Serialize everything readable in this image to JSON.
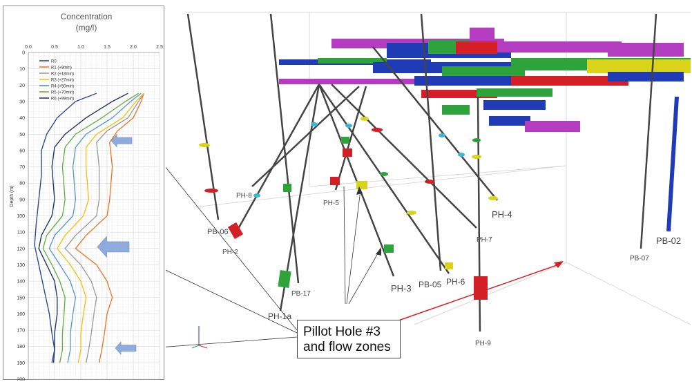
{
  "chart_data": {
    "type": "line",
    "title": "Concentration",
    "subtitle": "(mg/l)",
    "ylabel": "Depth (m)",
    "xlabel": "",
    "xlim": [
      0,
      2.5
    ],
    "ylim": [
      0,
      200
    ],
    "y_inverted": true,
    "x_axis_position": "top",
    "x_ticks": [
      "0.0",
      "0.5",
      "1.0",
      "1.5",
      "2.0",
      "2.5"
    ],
    "y_ticks": [
      "0",
      "10",
      "20",
      "30",
      "40",
      "50",
      "60",
      "70",
      "80",
      "90",
      "100",
      "110",
      "120",
      "130",
      "140",
      "150",
      "160",
      "170",
      "180",
      "190",
      "200"
    ],
    "grid": true,
    "legend_position": "top-left",
    "series": [
      {
        "name": "R0",
        "color": "#2a4a8a",
        "points": [
          [
            1.3,
            25
          ],
          [
            0.9,
            30
          ],
          [
            0.55,
            40
          ],
          [
            0.35,
            50
          ],
          [
            0.25,
            60
          ],
          [
            0.25,
            75
          ],
          [
            0.2,
            90
          ],
          [
            0.15,
            105
          ],
          [
            0.12,
            118
          ],
          [
            0.2,
            130
          ],
          [
            0.3,
            145
          ],
          [
            0.4,
            160
          ],
          [
            0.45,
            172
          ],
          [
            0.5,
            182
          ],
          [
            0.45,
            190
          ]
        ]
      },
      {
        "name": "R1 (+9min)",
        "color": "#e87b2c",
        "points": [
          [
            2.2,
            25
          ],
          [
            2.15,
            30
          ],
          [
            2.0,
            40
          ],
          [
            1.7,
            48
          ],
          [
            1.55,
            55
          ],
          [
            1.6,
            70
          ],
          [
            1.55,
            90
          ],
          [
            1.5,
            100
          ],
          [
            1.1,
            112
          ],
          [
            0.9,
            120
          ],
          [
            1.3,
            130
          ],
          [
            1.5,
            140
          ],
          [
            1.6,
            150
          ],
          [
            1.5,
            160
          ],
          [
            1.45,
            172
          ],
          [
            1.4,
            182
          ],
          [
            1.35,
            190
          ]
        ]
      },
      {
        "name": "R2 (+18min)",
        "color": "#9e9e9e",
        "points": [
          [
            2.2,
            25
          ],
          [
            2.1,
            30
          ],
          [
            1.9,
            40
          ],
          [
            1.5,
            48
          ],
          [
            1.3,
            55
          ],
          [
            1.35,
            70
          ],
          [
            1.35,
            90
          ],
          [
            1.3,
            100
          ],
          [
            0.9,
            112
          ],
          [
            0.7,
            120
          ],
          [
            1.0,
            130
          ],
          [
            1.2,
            140
          ],
          [
            1.3,
            150
          ],
          [
            1.25,
            160
          ],
          [
            1.2,
            172
          ],
          [
            1.15,
            182
          ],
          [
            1.1,
            190
          ]
        ]
      },
      {
        "name": "R3 (+27min)",
        "color": "#f2c21a",
        "points": [
          [
            2.2,
            25
          ],
          [
            2.05,
            30
          ],
          [
            1.8,
            40
          ],
          [
            1.3,
            50
          ],
          [
            1.1,
            58
          ],
          [
            1.1,
            70
          ],
          [
            1.15,
            90
          ],
          [
            1.05,
            100
          ],
          [
            0.7,
            112
          ],
          [
            0.55,
            120
          ],
          [
            0.8,
            130
          ],
          [
            1.0,
            140
          ],
          [
            1.1,
            150
          ],
          [
            1.05,
            160
          ],
          [
            1.0,
            172
          ],
          [
            1.0,
            182
          ],
          [
            0.95,
            190
          ]
        ]
      },
      {
        "name": "R4 (+50min)",
        "color": "#5b9bd5",
        "points": [
          [
            2.15,
            25
          ],
          [
            1.95,
            30
          ],
          [
            1.6,
            40
          ],
          [
            1.1,
            50
          ],
          [
            0.9,
            58
          ],
          [
            0.85,
            70
          ],
          [
            0.9,
            90
          ],
          [
            0.85,
            100
          ],
          [
            0.5,
            112
          ],
          [
            0.4,
            120
          ],
          [
            0.6,
            130
          ],
          [
            0.8,
            140
          ],
          [
            0.9,
            150
          ],
          [
            0.85,
            160
          ],
          [
            0.8,
            172
          ],
          [
            0.8,
            182
          ],
          [
            0.75,
            190
          ]
        ]
      },
      {
        "name": "R5 (+70min)",
        "color": "#6ab04c",
        "points": [
          [
            2.1,
            25
          ],
          [
            1.85,
            30
          ],
          [
            1.4,
            40
          ],
          [
            0.9,
            50
          ],
          [
            0.7,
            58
          ],
          [
            0.65,
            70
          ],
          [
            0.7,
            90
          ],
          [
            0.65,
            100
          ],
          [
            0.35,
            112
          ],
          [
            0.28,
            120
          ],
          [
            0.45,
            130
          ],
          [
            0.6,
            140
          ],
          [
            0.7,
            150
          ],
          [
            0.68,
            160
          ],
          [
            0.65,
            172
          ],
          [
            0.65,
            182
          ],
          [
            0.6,
            190
          ]
        ]
      },
      {
        "name": "R6 (+99min)",
        "color": "#1f3864",
        "points": [
          [
            1.9,
            25
          ],
          [
            1.6,
            30
          ],
          [
            1.1,
            40
          ],
          [
            0.7,
            50
          ],
          [
            0.5,
            58
          ],
          [
            0.45,
            70
          ],
          [
            0.5,
            90
          ],
          [
            0.45,
            100
          ],
          [
            0.25,
            112
          ],
          [
            0.2,
            120
          ],
          [
            0.35,
            130
          ],
          [
            0.5,
            140
          ],
          [
            0.55,
            150
          ],
          [
            0.55,
            160
          ],
          [
            0.5,
            172
          ],
          [
            0.5,
            182
          ],
          [
            0.48,
            190
          ]
        ]
      }
    ]
  },
  "scene": {
    "labels": [
      "PB-06",
      "PH-2",
      "PH-8",
      "PH-5",
      "PB-17",
      "PH-1a",
      "PH-3",
      "PB-05",
      "PH-6",
      "PH-7",
      "PH-4",
      "PH-9",
      "PB-07",
      "PB-02"
    ],
    "callout": {
      "line1": "Pillot Hole #3",
      "line2": "and flow zones"
    },
    "colors": {
      "red": "#d41f27",
      "green": "#2ea33b",
      "blue": "#1f3bb5",
      "magenta": "#b33cc0",
      "yellow": "#d9d31a",
      "cyan": "#3bb8d8",
      "arrow": "#8faadc"
    }
  }
}
